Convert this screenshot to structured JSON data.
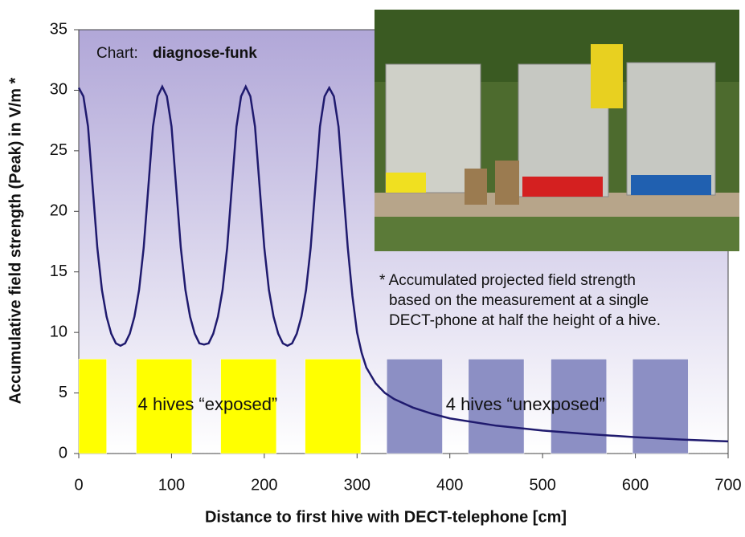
{
  "chart_data": {
    "type": "line",
    "source_label": "Chart:",
    "source": "diagnose-funk",
    "xlabel": "Distance to first hive with DECT-telephone [cm]",
    "ylabel": "Accumulative field strength (Peak) in V/m *",
    "note": [
      "* Accumulated projected field strength",
      "based on the measurement at a single",
      "DECT-phone at half the height of a hive."
    ],
    "x": [
      0,
      5,
      10,
      15,
      20,
      25,
      30,
      35,
      40,
      45,
      50,
      55,
      60,
      65,
      70,
      75,
      80,
      85,
      90,
      95,
      100,
      105,
      110,
      115,
      120,
      125,
      130,
      135,
      140,
      145,
      150,
      155,
      160,
      165,
      170,
      175,
      180,
      185,
      190,
      195,
      200,
      205,
      210,
      215,
      220,
      225,
      230,
      235,
      240,
      245,
      250,
      255,
      260,
      265,
      270,
      275,
      280,
      285,
      290,
      295,
      300,
      305,
      310,
      320,
      330,
      340,
      360,
      380,
      400,
      450,
      500,
      550,
      600,
      650,
      700
    ],
    "values": [
      30.2,
      29.5,
      27,
      22,
      17,
      13.5,
      11.3,
      9.9,
      9.1,
      8.9,
      9.1,
      9.9,
      11.3,
      13.5,
      17,
      22,
      27,
      29.5,
      30.3,
      29.5,
      27,
      22,
      17,
      13.5,
      11.3,
      9.9,
      9.1,
      9.0,
      9.1,
      9.9,
      11.3,
      13.5,
      17,
      22,
      27,
      29.5,
      30.3,
      29.5,
      27,
      22,
      17,
      13.5,
      11.3,
      9.9,
      9.1,
      8.9,
      9.1,
      9.9,
      11.3,
      13.5,
      17,
      22,
      27,
      29.5,
      30.2,
      29.5,
      27,
      22,
      17,
      13,
      10,
      8.3,
      7.1,
      5.8,
      5.0,
      4.5,
      3.8,
      3.3,
      2.9,
      2.3,
      1.9,
      1.6,
      1.35,
      1.15,
      1.0
    ],
    "color": "#1f1a6e",
    "hive_height": 7.8,
    "hives": [
      {
        "start": 0,
        "end": 30,
        "color": "#ffff00"
      },
      {
        "start": 62,
        "end": 122,
        "color": "#ffff00"
      },
      {
        "start": 153,
        "end": 213,
        "color": "#ffff00"
      },
      {
        "start": 244,
        "end": 304,
        "color": "#ffff00"
      },
      {
        "start": 332,
        "end": 392,
        "color": "#8c8fc4"
      },
      {
        "start": 420,
        "end": 480,
        "color": "#8c8fc4"
      },
      {
        "start": 509,
        "end": 569,
        "color": "#8c8fc4"
      },
      {
        "start": 597,
        "end": 657,
        "color": "#8c8fc4"
      }
    ],
    "hive_groups": [
      "4 hives “exposed”",
      "4 hives “unexposed”"
    ],
    "xlim": [
      0,
      700
    ],
    "xticks": [
      0,
      100,
      200,
      300,
      400,
      500,
      600,
      700
    ],
    "ylim": [
      0,
      35
    ],
    "yticks": [
      0,
      5,
      10,
      15,
      20,
      25,
      30,
      35
    ]
  }
}
